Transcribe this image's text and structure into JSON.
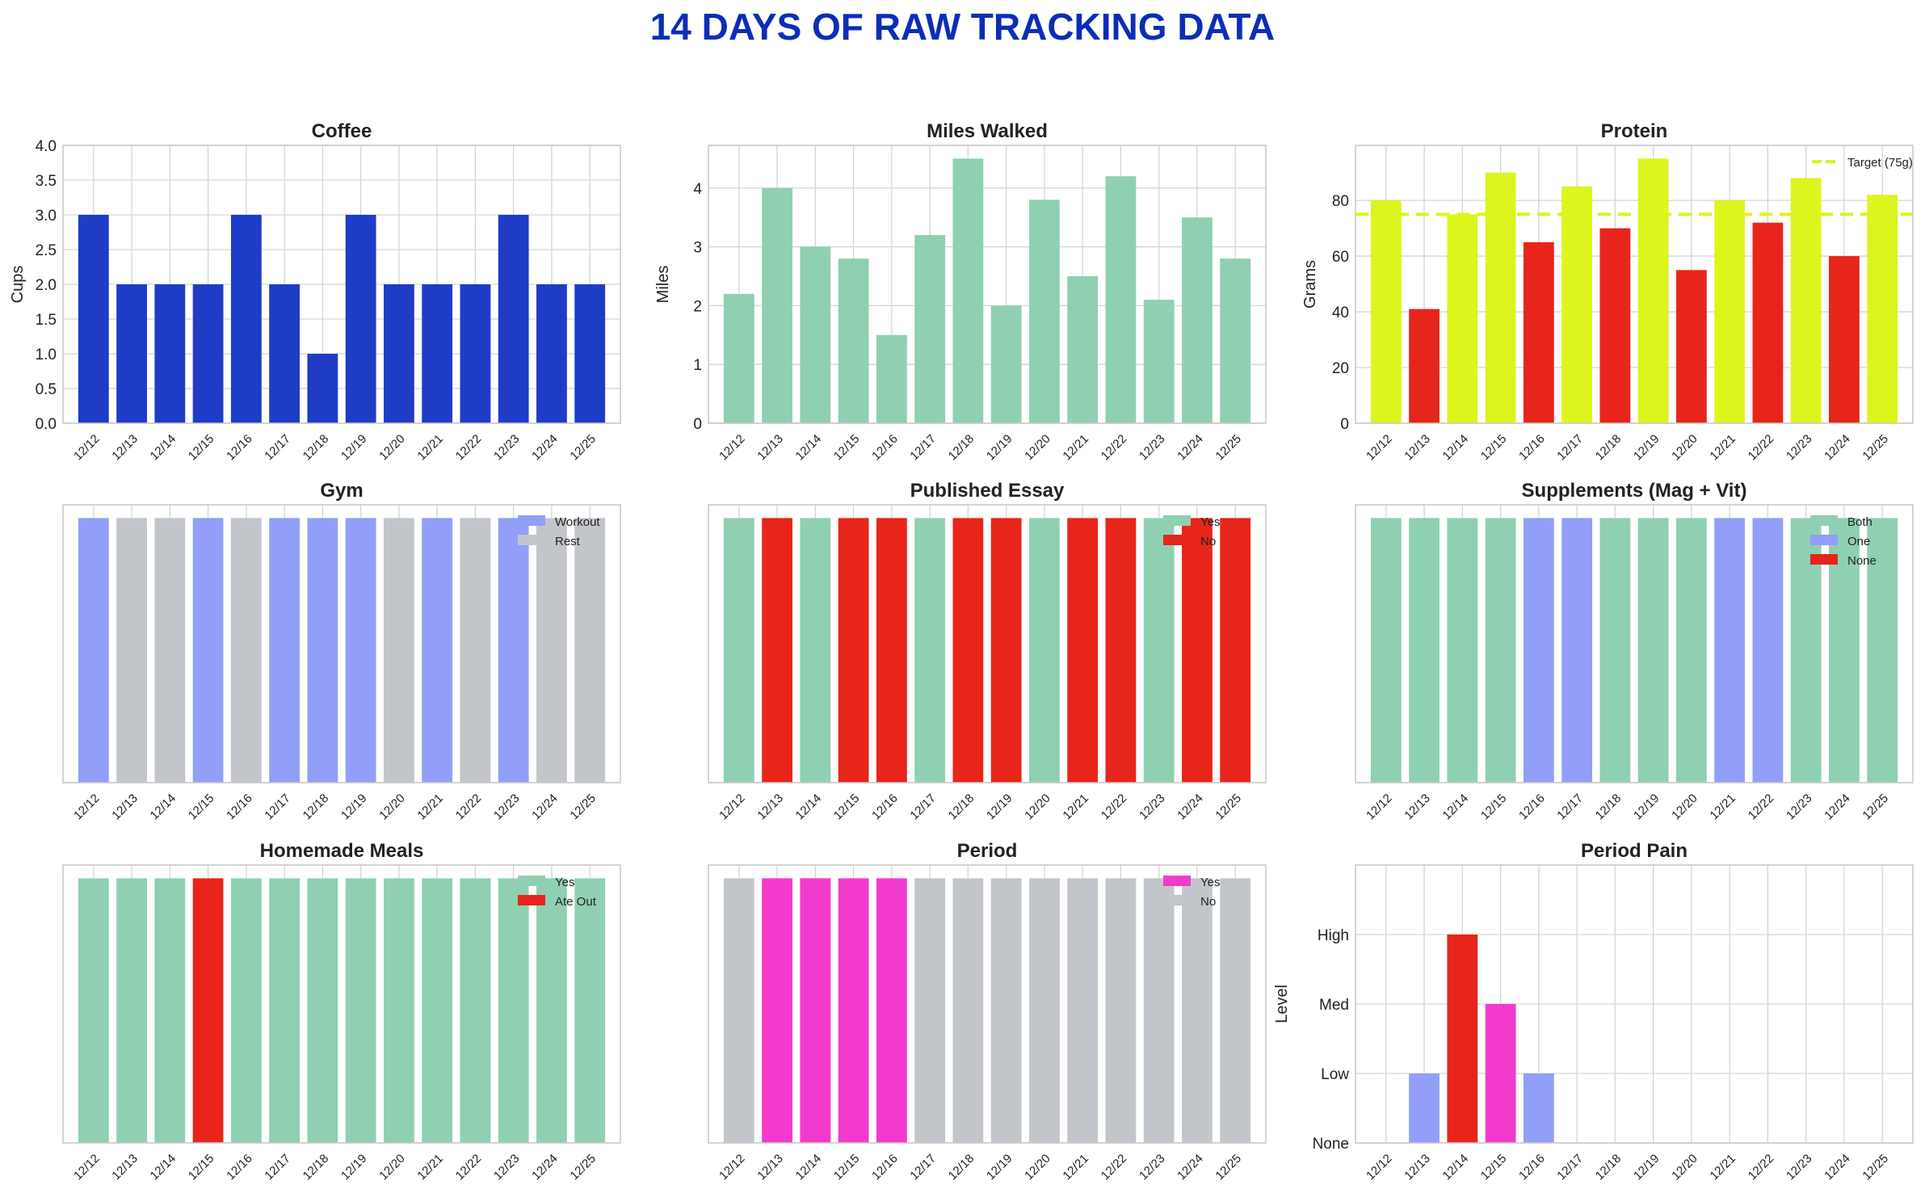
{
  "page_title": "14 DAYS OF RAW TRACKING DATA",
  "colors": {
    "title": "#0b2db8",
    "blue": "#1f3cc7",
    "mint": "#8fd0b2",
    "yellow": "#dcf51c",
    "red": "#e8251a",
    "periwinkle": "#919ff8",
    "gray": "#c2c6cb",
    "magenta": "#f23bcd"
  },
  "chart_data": [
    {
      "id": "coffee",
      "type": "bar",
      "title": "Coffee",
      "ylabel": "Cups",
      "categories": [
        "12/12",
        "12/13",
        "12/14",
        "12/15",
        "12/16",
        "12/17",
        "12/18",
        "12/19",
        "12/20",
        "12/21",
        "12/22",
        "12/23",
        "12/24",
        "12/25"
      ],
      "values": [
        3,
        2,
        2,
        2,
        3,
        2,
        1,
        3,
        2,
        2,
        2,
        3,
        2,
        2
      ],
      "ylim": [
        0,
        4.0
      ],
      "yticks": [
        0.0,
        0.5,
        1.0,
        1.5,
        2.0,
        2.5,
        3.0,
        3.5,
        4.0
      ],
      "ytick_labels": [
        "0.0",
        "0.5",
        "1.0",
        "1.5",
        "2.0",
        "2.5",
        "3.0",
        "3.5",
        "4.0"
      ],
      "bar_colors": [
        "#1f3cc7"
      ]
    },
    {
      "id": "miles",
      "type": "bar",
      "title": "Miles Walked",
      "ylabel": "Miles",
      "categories": [
        "12/12",
        "12/13",
        "12/14",
        "12/15",
        "12/16",
        "12/17",
        "12/18",
        "12/19",
        "12/20",
        "12/21",
        "12/22",
        "12/23",
        "12/24",
        "12/25"
      ],
      "values": [
        2.2,
        4.0,
        3.0,
        2.8,
        1.5,
        3.2,
        4.5,
        2.0,
        3.8,
        2.5,
        4.2,
        2.1,
        3.5,
        2.8
      ],
      "ylim": [
        0,
        4.725
      ],
      "yticks": [
        0,
        1,
        2,
        3,
        4
      ],
      "ytick_labels": [
        "0",
        "1",
        "2",
        "3",
        "4"
      ],
      "bar_colors": [
        "#8fd0b2"
      ]
    },
    {
      "id": "protein",
      "type": "bar",
      "title": "Protein",
      "ylabel": "Grams",
      "categories": [
        "12/12",
        "12/13",
        "12/14",
        "12/15",
        "12/16",
        "12/17",
        "12/18",
        "12/19",
        "12/20",
        "12/21",
        "12/22",
        "12/23",
        "12/24",
        "12/25"
      ],
      "values": [
        80,
        41,
        75,
        90,
        65,
        85,
        70,
        95,
        55,
        80,
        72,
        88,
        60,
        82
      ],
      "ylim": [
        0,
        99.75
      ],
      "yticks": [
        0,
        20,
        40,
        60,
        80
      ],
      "ytick_labels": [
        "0",
        "20",
        "40",
        "60",
        "80"
      ],
      "bar_colors": [
        "#dcf51c",
        "#e8251a",
        "#dcf51c",
        "#dcf51c",
        "#e8251a",
        "#dcf51c",
        "#e8251a",
        "#dcf51c",
        "#e8251a",
        "#dcf51c",
        "#e8251a",
        "#dcf51c",
        "#e8251a",
        "#dcf51c"
      ],
      "target": {
        "value": 75,
        "label": "Target (75g)",
        "color": "#dcf51c"
      },
      "legend": [
        {
          "label": "Target (75g)",
          "color": "#dcf51c",
          "style": "dash"
        }
      ]
    },
    {
      "id": "gym",
      "type": "bar",
      "title": "Gym",
      "ylabel": "",
      "categories": [
        "12/12",
        "12/13",
        "12/14",
        "12/15",
        "12/16",
        "12/17",
        "12/18",
        "12/19",
        "12/20",
        "12/21",
        "12/22",
        "12/23",
        "12/24",
        "12/25"
      ],
      "values": [
        1,
        1,
        1,
        1,
        1,
        1,
        1,
        1,
        1,
        1,
        1,
        1,
        1,
        1
      ],
      "states": [
        "Workout",
        "Rest",
        "Rest",
        "Workout",
        "Rest",
        "Workout",
        "Workout",
        "Workout",
        "Rest",
        "Workout",
        "Rest",
        "Workout",
        "Rest",
        "Rest"
      ],
      "ylim": [
        0,
        1.05
      ],
      "yticks": [],
      "ytick_labels": [],
      "bar_colors": [
        "#919ff8",
        "#c2c6cb",
        "#c2c6cb",
        "#919ff8",
        "#c2c6cb",
        "#919ff8",
        "#919ff8",
        "#919ff8",
        "#c2c6cb",
        "#919ff8",
        "#c2c6cb",
        "#919ff8",
        "#c2c6cb",
        "#c2c6cb"
      ],
      "legend": [
        {
          "label": "Workout",
          "color": "#919ff8"
        },
        {
          "label": "Rest",
          "color": "#c2c6cb"
        }
      ]
    },
    {
      "id": "essay",
      "type": "bar",
      "title": "Published Essay",
      "ylabel": "",
      "categories": [
        "12/12",
        "12/13",
        "12/14",
        "12/15",
        "12/16",
        "12/17",
        "12/18",
        "12/19",
        "12/20",
        "12/21",
        "12/22",
        "12/23",
        "12/24",
        "12/25"
      ],
      "values": [
        1,
        1,
        1,
        1,
        1,
        1,
        1,
        1,
        1,
        1,
        1,
        1,
        1,
        1
      ],
      "states": [
        "Yes",
        "No",
        "Yes",
        "No",
        "No",
        "Yes",
        "No",
        "No",
        "Yes",
        "No",
        "No",
        "Yes",
        "No",
        "No"
      ],
      "ylim": [
        0,
        1.05
      ],
      "yticks": [],
      "ytick_labels": [],
      "bar_colors": [
        "#8fd0b2",
        "#e8251a",
        "#8fd0b2",
        "#e8251a",
        "#e8251a",
        "#8fd0b2",
        "#e8251a",
        "#e8251a",
        "#8fd0b2",
        "#e8251a",
        "#e8251a",
        "#8fd0b2",
        "#e8251a",
        "#e8251a"
      ],
      "legend": [
        {
          "label": "Yes",
          "color": "#8fd0b2"
        },
        {
          "label": "No",
          "color": "#e8251a"
        }
      ]
    },
    {
      "id": "supplements",
      "type": "bar",
      "title": "Supplements (Mag + Vit)",
      "ylabel": "",
      "categories": [
        "12/12",
        "12/13",
        "12/14",
        "12/15",
        "12/16",
        "12/17",
        "12/18",
        "12/19",
        "12/20",
        "12/21",
        "12/22",
        "12/23",
        "12/24",
        "12/25"
      ],
      "values": [
        1,
        1,
        1,
        1,
        1,
        1,
        1,
        1,
        1,
        1,
        1,
        1,
        1,
        1
      ],
      "states": [
        "Both",
        "Both",
        "Both",
        "Both",
        "One",
        "One",
        "Both",
        "Both",
        "Both",
        "One",
        "One",
        "Both",
        "Both",
        "Both"
      ],
      "ylim": [
        0,
        1.05
      ],
      "yticks": [],
      "ytick_labels": [],
      "bar_colors": [
        "#8fd0b2",
        "#8fd0b2",
        "#8fd0b2",
        "#8fd0b2",
        "#919ff8",
        "#919ff8",
        "#8fd0b2",
        "#8fd0b2",
        "#8fd0b2",
        "#919ff8",
        "#919ff8",
        "#8fd0b2",
        "#8fd0b2",
        "#8fd0b2"
      ],
      "legend": [
        {
          "label": "Both",
          "color": "#8fd0b2"
        },
        {
          "label": "One",
          "color": "#919ff8"
        },
        {
          "label": "None",
          "color": "#e8251a"
        }
      ]
    },
    {
      "id": "meals",
      "type": "bar",
      "title": "Homemade Meals",
      "ylabel": "",
      "categories": [
        "12/12",
        "12/13",
        "12/14",
        "12/15",
        "12/16",
        "12/17",
        "12/18",
        "12/19",
        "12/20",
        "12/21",
        "12/22",
        "12/23",
        "12/24",
        "12/25"
      ],
      "values": [
        1,
        1,
        1,
        1,
        1,
        1,
        1,
        1,
        1,
        1,
        1,
        1,
        1,
        1
      ],
      "states": [
        "Yes",
        "Yes",
        "Yes",
        "Ate Out",
        "Yes",
        "Yes",
        "Yes",
        "Yes",
        "Yes",
        "Yes",
        "Yes",
        "Yes",
        "Yes",
        "Yes"
      ],
      "ylim": [
        0,
        1.05
      ],
      "yticks": [],
      "ytick_labels": [],
      "bar_colors": [
        "#8fd0b2",
        "#8fd0b2",
        "#8fd0b2",
        "#e8251a",
        "#8fd0b2",
        "#8fd0b2",
        "#8fd0b2",
        "#8fd0b2",
        "#8fd0b2",
        "#8fd0b2",
        "#8fd0b2",
        "#8fd0b2",
        "#8fd0b2",
        "#8fd0b2"
      ],
      "legend": [
        {
          "label": "Yes",
          "color": "#8fd0b2"
        },
        {
          "label": "Ate Out",
          "color": "#e8251a"
        }
      ]
    },
    {
      "id": "period",
      "type": "bar",
      "title": "Period",
      "ylabel": "",
      "categories": [
        "12/12",
        "12/13",
        "12/14",
        "12/15",
        "12/16",
        "12/17",
        "12/18",
        "12/19",
        "12/20",
        "12/21",
        "12/22",
        "12/23",
        "12/24",
        "12/25"
      ],
      "values": [
        1,
        1,
        1,
        1,
        1,
        1,
        1,
        1,
        1,
        1,
        1,
        1,
        1,
        1
      ],
      "states": [
        "No",
        "Yes",
        "Yes",
        "Yes",
        "Yes",
        "No",
        "No",
        "No",
        "No",
        "No",
        "No",
        "No",
        "No",
        "No"
      ],
      "ylim": [
        0,
        1.05
      ],
      "yticks": [],
      "ytick_labels": [],
      "bar_colors": [
        "#c2c6cb",
        "#f23bcd",
        "#f23bcd",
        "#f23bcd",
        "#f23bcd",
        "#c2c6cb",
        "#c2c6cb",
        "#c2c6cb",
        "#c2c6cb",
        "#c2c6cb",
        "#c2c6cb",
        "#c2c6cb",
        "#c2c6cb",
        "#c2c6cb"
      ],
      "legend": [
        {
          "label": "Yes",
          "color": "#f23bcd"
        },
        {
          "label": "No",
          "color": "#c2c6cb"
        }
      ]
    },
    {
      "id": "pain",
      "type": "bar",
      "title": "Period Pain",
      "ylabel": "Level",
      "categories": [
        "12/12",
        "12/13",
        "12/14",
        "12/15",
        "12/16",
        "12/17",
        "12/18",
        "12/19",
        "12/20",
        "12/21",
        "12/22",
        "12/23",
        "12/24",
        "12/25"
      ],
      "values": [
        0,
        1,
        3,
        2,
        1,
        0,
        0,
        0,
        0,
        0,
        0,
        0,
        0,
        0
      ],
      "ylim": [
        0,
        4.0
      ],
      "yticks": [
        0,
        1,
        2,
        3
      ],
      "ytick_labels": [
        "None",
        "Low",
        "Med",
        "High"
      ],
      "bar_colors": [
        "#919ff8",
        "#919ff8",
        "#e8251a",
        "#f23bcd",
        "#919ff8",
        "#919ff8",
        "#919ff8",
        "#919ff8",
        "#919ff8",
        "#919ff8",
        "#919ff8",
        "#919ff8",
        "#919ff8",
        "#919ff8"
      ]
    }
  ]
}
